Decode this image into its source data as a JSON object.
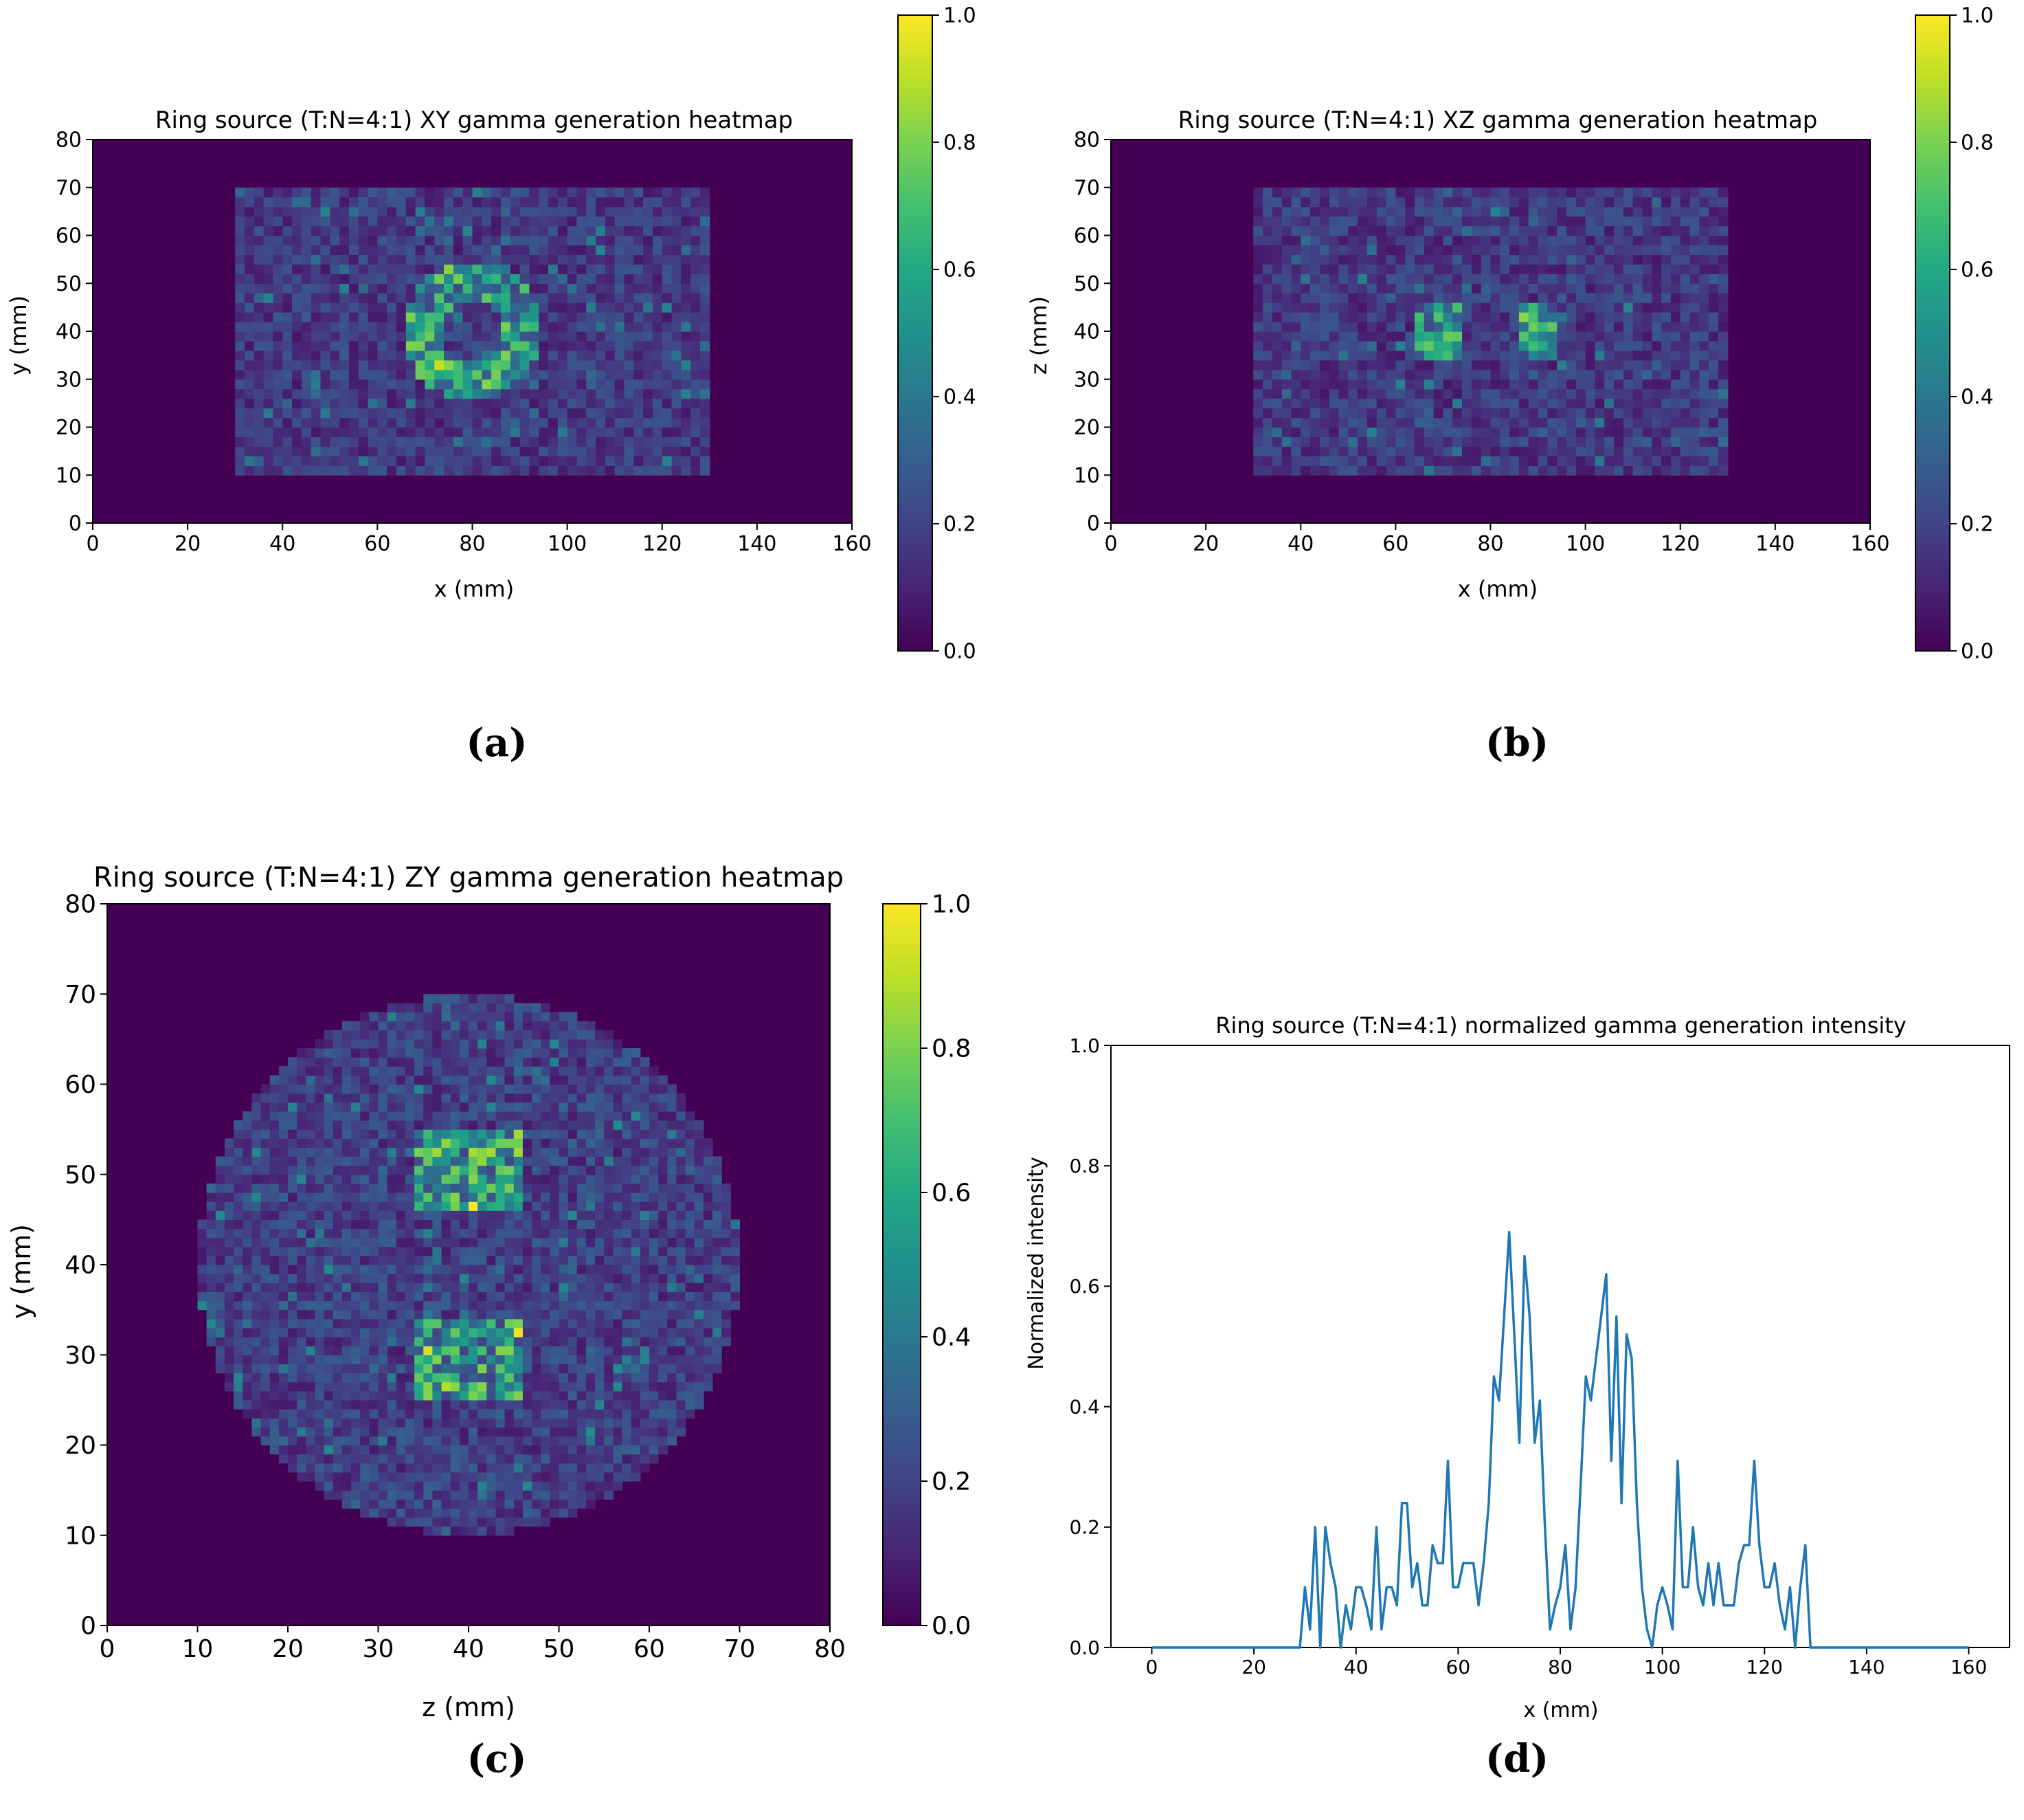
{
  "panels": {
    "a": {
      "caption": "(a)",
      "chart_data": {
        "type": "heatmap",
        "title": "Ring source (T:N=4:1) XY gamma generation heatmap",
        "xlabel": "x (mm)",
        "ylabel": "y (mm)",
        "xlim": [
          0,
          160
        ],
        "ylim": [
          0,
          80
        ],
        "xticks": [
          "0",
          "20",
          "40",
          "60",
          "80",
          "100",
          "120",
          "140",
          "160"
        ],
        "yticks": [
          "0",
          "10",
          "20",
          "30",
          "40",
          "50",
          "60",
          "70",
          "80"
        ],
        "colorbar": {
          "range": [
            0,
            1
          ],
          "ticks": [
            "0.0",
            "0.2",
            "0.4",
            "0.6",
            "0.8",
            "1.0"
          ],
          "colormap": "viridis"
        },
        "grid_step_mm": 2,
        "regions": [
          {
            "kind": "rect",
            "x": [
              30,
              130
            ],
            "y": [
              10,
              70
            ],
            "mean_value": 0.18
          },
          {
            "kind": "annulus",
            "center": [
              80,
              40
            ],
            "r_inner": 6.5,
            "r_outer": 14.5,
            "mean_value": 0.55
          }
        ]
      }
    },
    "b": {
      "caption": "(b)",
      "chart_data": {
        "type": "heatmap",
        "title": "Ring source (T:N=4:1) XZ gamma generation heatmap",
        "xlabel": "x (mm)",
        "ylabel": "z (mm)",
        "xlim": [
          0,
          160
        ],
        "ylim": [
          0,
          80
        ],
        "xticks": [
          "0",
          "20",
          "40",
          "60",
          "80",
          "100",
          "120",
          "140",
          "160"
        ],
        "yticks": [
          "0",
          "10",
          "20",
          "30",
          "40",
          "50",
          "60",
          "70",
          "80"
        ],
        "colorbar": {
          "range": [
            0,
            1
          ],
          "ticks": [
            "0.0",
            "0.2",
            "0.4",
            "0.6",
            "0.8",
            "1.0"
          ],
          "colormap": "viridis"
        },
        "grid_step_mm": 2,
        "regions": [
          {
            "kind": "rect",
            "x": [
              30,
              130
            ],
            "y": [
              10,
              70
            ],
            "mean_value": 0.18
          },
          {
            "kind": "rect",
            "x": [
              65,
              74
            ],
            "y": [
              34,
              46
            ],
            "mean_value": 0.52
          },
          {
            "kind": "rect",
            "x": [
              86,
              95
            ],
            "y": [
              34,
              46
            ],
            "mean_value": 0.52
          }
        ]
      }
    },
    "c": {
      "caption": "(c)",
      "chart_data": {
        "type": "heatmap",
        "title": "Ring source (T:N=4:1) ZY gamma generation heatmap",
        "xlabel": "z (mm)",
        "ylabel": "y (mm)",
        "xlim": [
          0,
          80
        ],
        "ylim": [
          0,
          80
        ],
        "xticks": [
          "0",
          "10",
          "20",
          "30",
          "40",
          "50",
          "60",
          "70",
          "80"
        ],
        "yticks": [
          "0",
          "10",
          "20",
          "30",
          "40",
          "50",
          "60",
          "70",
          "80"
        ],
        "colorbar": {
          "range": [
            0,
            1
          ],
          "ticks": [
            "0.0",
            "0.2",
            "0.4",
            "0.6",
            "0.8",
            "1.0"
          ],
          "colormap": "viridis"
        },
        "grid_step_mm": 1,
        "regions": [
          {
            "kind": "disk",
            "center": [
              40,
              40
            ],
            "r": 30,
            "mean_value": 0.2
          },
          {
            "kind": "rect",
            "x": [
              34,
              46
            ],
            "y": [
              46,
              55
            ],
            "mean_value": 0.58
          },
          {
            "kind": "rect",
            "x": [
              34,
              46
            ],
            "y": [
              25,
              34
            ],
            "mean_value": 0.55
          }
        ]
      }
    },
    "d": {
      "caption": "(d)",
      "chart_data": {
        "type": "line",
        "title": "Ring source (T:N=4:1) normalized gamma generation intensity",
        "xlabel": "x (mm)",
        "ylabel": "Normalized intensity",
        "xlim": [
          -8,
          168
        ],
        "ylim": [
          0,
          1
        ],
        "xticks": [
          "0",
          "20",
          "40",
          "60",
          "80",
          "100",
          "120",
          "140",
          "160"
        ],
        "yticks": [
          "0.0",
          "0.2",
          "0.4",
          "0.6",
          "0.8",
          "1.0"
        ],
        "series": [
          {
            "name": "intensity",
            "color": "#1f77b4",
            "x": [
              0,
              29,
              30,
              31,
              32,
              33,
              34,
              35,
              36,
              37,
              38,
              39,
              40,
              41,
              42,
              43,
              44,
              45,
              46,
              47,
              48,
              49,
              50,
              51,
              52,
              53,
              54,
              55,
              56,
              57,
              58,
              59,
              60,
              61,
              62,
              63,
              64,
              65,
              66,
              67,
              68,
              69,
              70,
              71,
              72,
              73,
              74,
              75,
              76,
              77,
              78,
              79,
              80,
              81,
              82,
              83,
              84,
              85,
              86,
              87,
              88,
              89,
              90,
              91,
              92,
              93,
              94,
              95,
              96,
              97,
              98,
              99,
              100,
              101,
              102,
              103,
              104,
              105,
              106,
              107,
              108,
              109,
              110,
              111,
              112,
              113,
              114,
              115,
              116,
              117,
              118,
              119,
              120,
              121,
              122,
              123,
              124,
              125,
              126,
              127,
              128,
              129,
              130,
              160
            ],
            "y": [
              0,
              0,
              0.1,
              0.03,
              0.2,
              0,
              0.2,
              0.14,
              0.1,
              0,
              0.07,
              0.03,
              0.1,
              0.1,
              0.07,
              0.03,
              0.2,
              0.03,
              0.1,
              0.1,
              0.07,
              0.24,
              0.24,
              0.1,
              0.14,
              0.07,
              0.07,
              0.17,
              0.14,
              0.14,
              0.31,
              0.1,
              0.1,
              0.14,
              0.14,
              0.14,
              0.07,
              0.14,
              0.24,
              0.45,
              0.41,
              0.55,
              0.69,
              0.52,
              0.34,
              0.65,
              0.55,
              0.34,
              0.41,
              0.2,
              0.03,
              0.07,
              0.1,
              0.17,
              0.03,
              0.1,
              0.27,
              0.45,
              0.41,
              0.48,
              0.55,
              0.62,
              0.31,
              0.55,
              0.24,
              0.52,
              0.48,
              0.24,
              0.1,
              0.03,
              0,
              0.07,
              0.1,
              0.07,
              0.03,
              0.31,
              0.1,
              0.1,
              0.2,
              0.1,
              0.07,
              0.14,
              0.07,
              0.14,
              0.07,
              0.07,
              0.07,
              0.14,
              0.17,
              0.17,
              0.31,
              0.17,
              0.1,
              0.1,
              0.14,
              0.07,
              0.03,
              0.1,
              0,
              0.1,
              0.17,
              0,
              0,
              0
            ]
          }
        ]
      }
    }
  }
}
